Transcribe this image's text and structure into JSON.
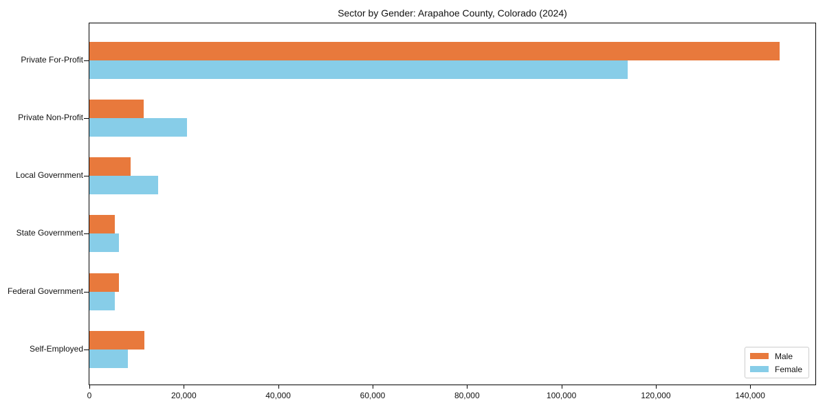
{
  "title": "Sector by Gender: Arapahoe County, Colorado (2024)",
  "chart_data": {
    "type": "bar",
    "orientation": "horizontal",
    "title": "Sector by Gender: Arapahoe County, Colorado (2024)",
    "categories": [
      "Private For-Profit",
      "Private Non-Profit",
      "Local Government",
      "State Government",
      "Federal Government",
      "Self-Employed"
    ],
    "series": [
      {
        "name": "Male",
        "color": "#e8793c",
        "values": [
          146200,
          11500,
          8700,
          5400,
          6300,
          11600
        ]
      },
      {
        "name": "Female",
        "color": "#87cde8",
        "values": [
          114100,
          20700,
          14500,
          6300,
          5400,
          8100
        ]
      }
    ],
    "xlabel": "",
    "ylabel": "",
    "xlim": [
      0,
      153800
    ],
    "x_ticks": [
      0,
      20000,
      40000,
      60000,
      80000,
      100000,
      120000,
      140000
    ],
    "x_tick_labels": [
      "0",
      "20,000",
      "40,000",
      "60,000",
      "80,000",
      "100,000",
      "120,000",
      "140,000"
    ],
    "grid": false,
    "legend_position": "lower right"
  },
  "colors": {
    "male": "#e8793c",
    "female": "#87cde8",
    "spine": "#000000",
    "background": "#ffffff",
    "legend_border": "#cccccc"
  }
}
